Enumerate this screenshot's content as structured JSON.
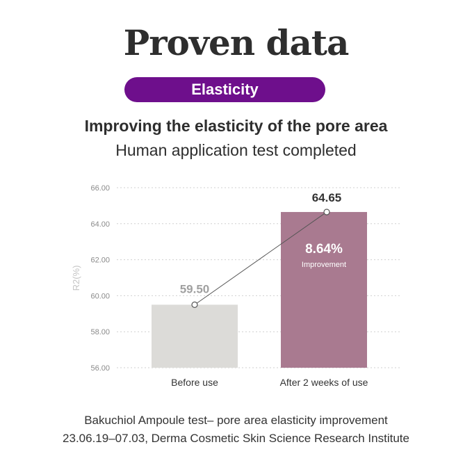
{
  "header": {
    "title": "Proven data",
    "badge": "Elasticity",
    "headline": "Improving the elasticity of the pore area",
    "subheadline": "Human application test completed"
  },
  "chart_data": {
    "type": "bar",
    "categories": [
      "Before use",
      "After 2 weeks of use"
    ],
    "values": [
      59.5,
      64.65
    ],
    "value_labels": [
      "59.50",
      "64.65"
    ],
    "bar_colors": [
      "#dcdbd8",
      "#a97a90"
    ],
    "ylabel": "R2(%)",
    "ylim": [
      56,
      66
    ],
    "yticks": [
      "56.00",
      "58.00",
      "60.00",
      "62.00",
      "64.00",
      "66.00"
    ],
    "grid": true,
    "annotation": {
      "value": "8.64%",
      "label": "Improvement"
    }
  },
  "footer": {
    "line1": "Bakuchiol Ampoule test– pore area elasticity improvement",
    "line2": "23.06.19–07.03, Derma Cosmetic Skin Science Research Institute"
  }
}
